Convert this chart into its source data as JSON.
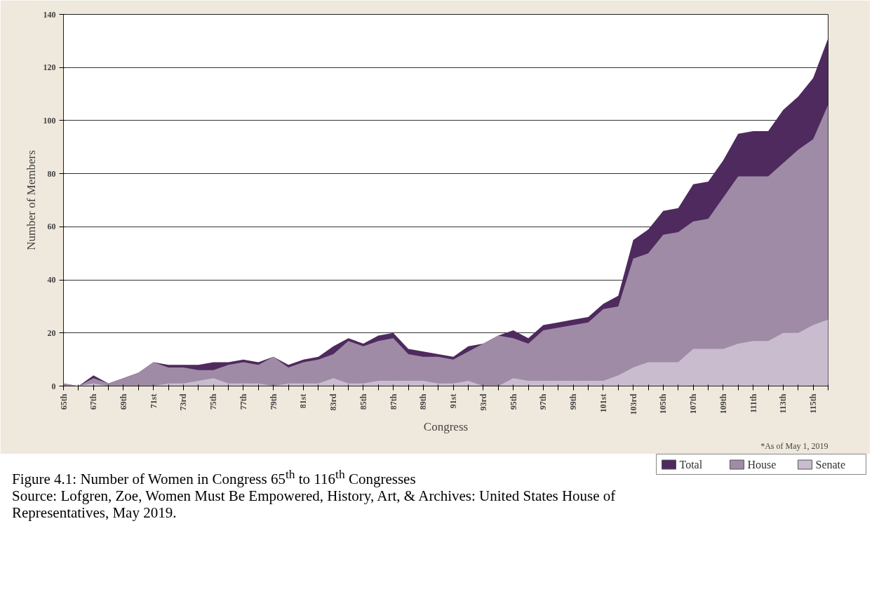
{
  "chart_data": {
    "type": "area",
    "xlabel": "Congress",
    "ylabel": "Number of Members",
    "categories": [
      "65th",
      null,
      "67th",
      null,
      "69th",
      null,
      "71st",
      null,
      "73rd",
      null,
      "75th",
      null,
      "77th",
      null,
      "79th",
      null,
      "81st",
      null,
      "83rd",
      null,
      "85th",
      null,
      "87th",
      null,
      "89th",
      null,
      "91st",
      null,
      "93rd",
      null,
      "95th",
      null,
      "97th",
      null,
      "99th",
      null,
      "101st",
      null,
      "103rd",
      null,
      "105th",
      null,
      "107th",
      null,
      "109th",
      null,
      "111th",
      null,
      "113th",
      null,
      "115th",
      null
    ],
    "series": [
      {
        "name": "Total",
        "color": "#4e2a5e",
        "values": [
          1,
          0,
          4,
          1,
          3,
          5,
          9,
          8,
          8,
          8,
          9,
          9,
          10,
          9,
          11,
          8,
          10,
          11,
          15,
          18,
          16,
          19,
          20,
          14,
          13,
          12,
          11,
          15,
          16,
          19,
          21,
          18,
          23,
          24,
          25,
          26,
          31,
          34,
          55,
          59,
          66,
          67,
          76,
          77,
          85,
          95,
          96,
          96,
          104,
          109,
          116,
          131
        ]
      },
      {
        "name": "House",
        "color": "#a08ba6",
        "values": [
          1,
          0,
          3,
          1,
          3,
          5,
          9,
          7,
          7,
          6,
          6,
          8,
          9,
          8,
          11,
          7,
          9,
          10,
          12,
          17,
          15,
          17,
          18,
          12,
          11,
          11,
          10,
          13,
          16,
          19,
          18,
          16,
          21,
          22,
          23,
          24,
          29,
          30,
          48,
          50,
          57,
          58,
          62,
          63,
          71,
          79,
          79,
          79,
          84,
          89,
          93,
          106
        ]
      },
      {
        "name": "Senate",
        "color": "#c9bccf",
        "values": [
          0,
          0,
          1,
          0,
          0,
          0,
          0,
          1,
          1,
          2,
          3,
          1,
          1,
          1,
          0,
          1,
          1,
          1,
          3,
          1,
          1,
          2,
          2,
          2,
          2,
          1,
          1,
          2,
          0,
          0,
          3,
          2,
          2,
          2,
          2,
          2,
          2,
          4,
          7,
          9,
          9,
          9,
          14,
          14,
          14,
          16,
          17,
          17,
          20,
          20,
          23,
          25
        ]
      }
    ],
    "ylim": [
      0,
      140
    ],
    "yticks": [
      0,
      20,
      40,
      60,
      80,
      100,
      120,
      140
    ],
    "grid": "y",
    "legend": "bottom right",
    "annotations": [
      "*As of May 1, 2019",
      "Figure 4.1: Number of Women in Congress 65$^{th}$ to 116$^{th}$ Congresses",
      "Source: Lofgren, Zoe, Women Must Be Empowered, History, Art, & Archives: United States House of Representatives, May 2019."
    ]
  }
}
